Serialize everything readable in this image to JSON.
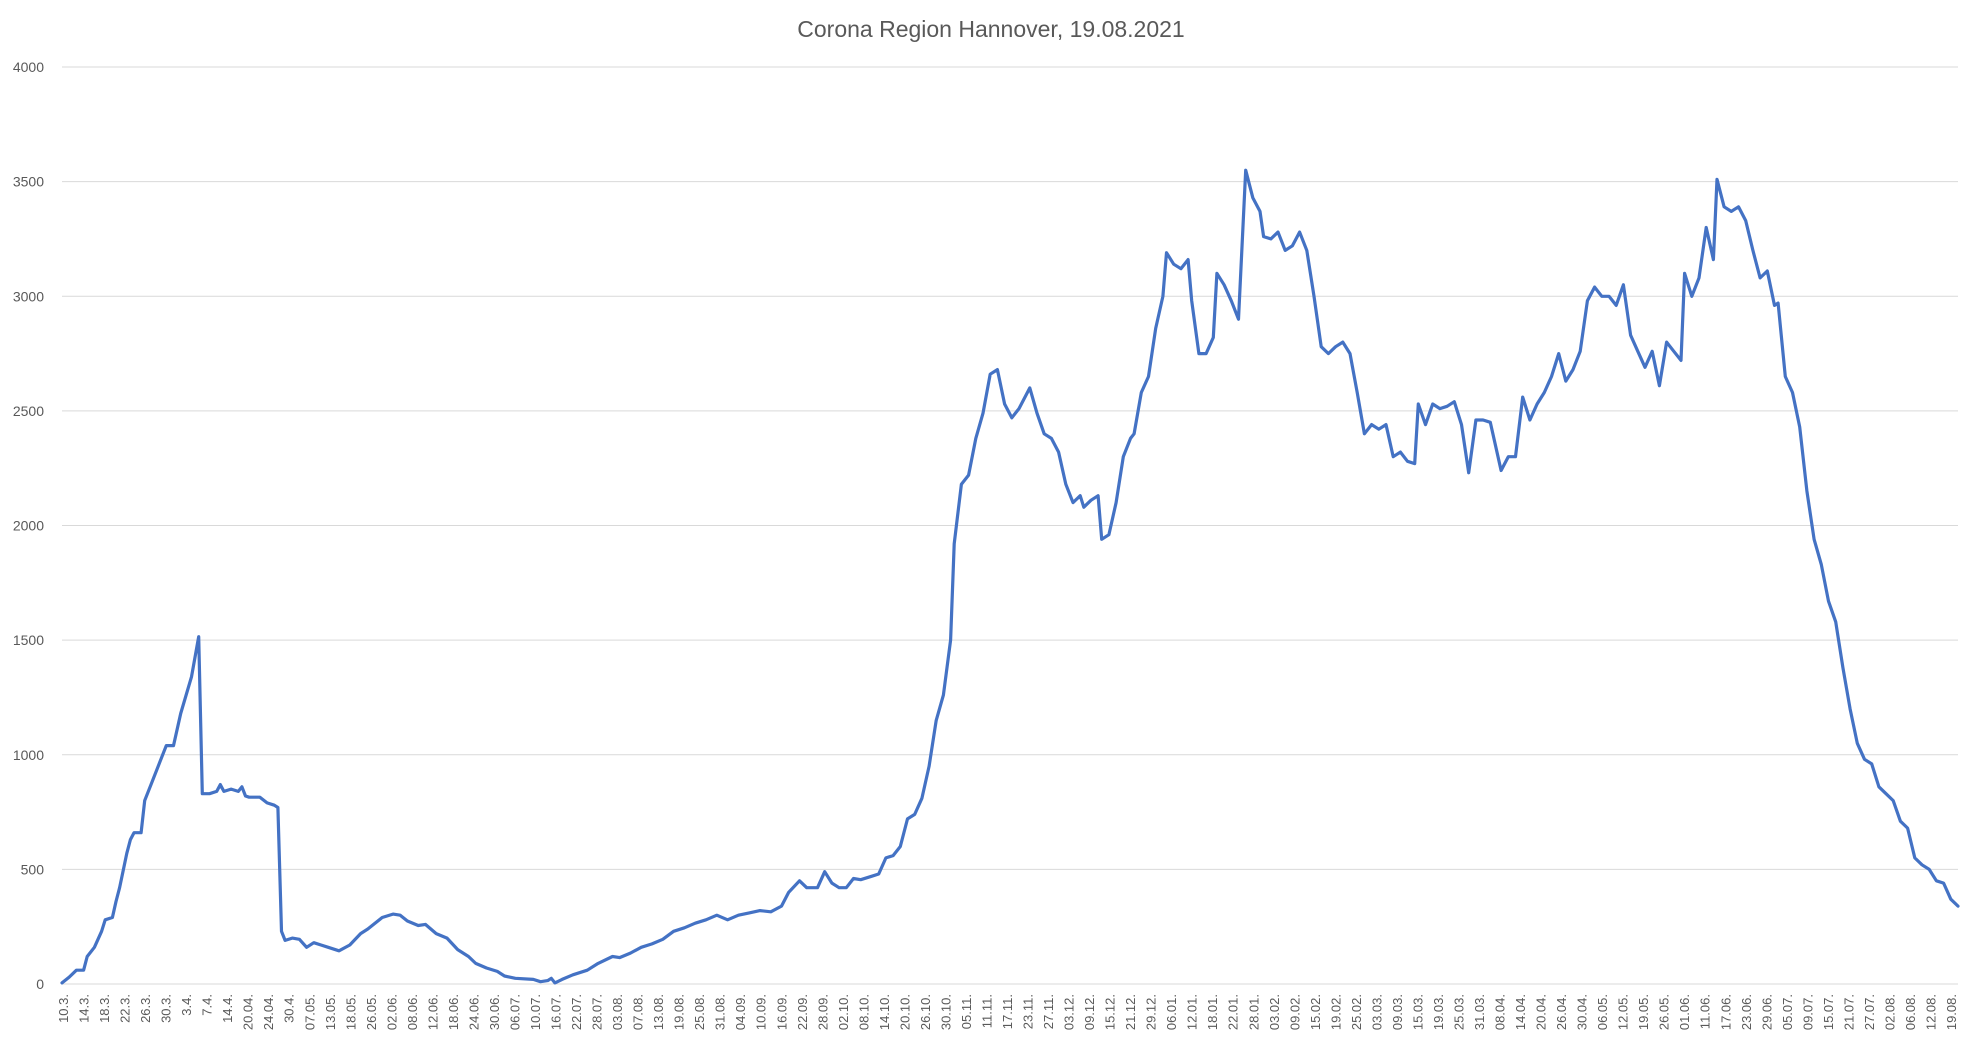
{
  "chart_data": {
    "type": "line",
    "title": "Corona Region Hannover, 19.08.2021",
    "xlabel": "",
    "ylabel": "",
    "ylim": [
      0,
      4000
    ],
    "yticks": [
      0,
      500,
      1000,
      1500,
      2000,
      2500,
      3000,
      3500,
      4000
    ],
    "grid": true,
    "legend": "none",
    "colors": {
      "series": "#4472c4",
      "grid": "#d9d9d9",
      "text": "#595959"
    },
    "x_start_date": "2020-03-10",
    "x_end_date": "2021-08-19",
    "xticks": [
      "10.3.",
      "14.3.",
      "18.3.",
      "22.3.",
      "26.3.",
      "30.3.",
      "3.4.",
      "7.4.",
      "14.4.",
      "20.04.",
      "24.04.",
      "30.4.",
      "07.05.",
      "13.05.",
      "18.05.",
      "26.05.",
      "02.06.",
      "08.06.",
      "12.06.",
      "18.06.",
      "24.06.",
      "30.06.",
      "06.07.",
      "10.07.",
      "16.07.",
      "22.07.",
      "28.07.",
      "03.08.",
      "07.08.",
      "13.08.",
      "19.08.",
      "25.08.",
      "31.08.",
      "04.09.",
      "10.09.",
      "16.09.",
      "22.09.",
      "28.09.",
      "02.10.",
      "08.10.",
      "14.10.",
      "20.10.",
      "26.10.",
      "30.10.",
      "05.11.",
      "11.11.",
      "17.11.",
      "23.11.",
      "27.11.",
      "03.12.",
      "09.12.",
      "15.12.",
      "21.12.",
      "29.12.",
      "06.01.",
      "12.01.",
      "18.01.",
      "22.01.",
      "28.01.",
      "03.02.",
      "09.02.",
      "15.02.",
      "19.02.",
      "25.02.",
      "03.03.",
      "09.03.",
      "15.03.",
      "19.03.",
      "25.03.",
      "31.03.",
      "08.04.",
      "14.04.",
      "20.04.",
      "26.04.",
      "30.04.",
      "06.05.",
      "12.05.",
      "19.05.",
      "26.05.",
      "01.06.",
      "11.06.",
      "17.06.",
      "23.06.",
      "29.06.",
      "05.07.",
      "09.07.",
      "15.07.",
      "21.07.",
      "27.07.",
      "02.08.",
      "06.08.",
      "12.08.",
      "19.08."
    ],
    "series": [
      {
        "name": "",
        "points": [
          [
            "2020-03-10",
            5
          ],
          [
            "2020-03-12",
            30
          ],
          [
            "2020-03-14",
            60
          ],
          [
            "2020-03-16",
            60
          ],
          [
            "2020-03-17",
            120
          ],
          [
            "2020-03-19",
            160
          ],
          [
            "2020-03-21",
            230
          ],
          [
            "2020-03-22",
            280
          ],
          [
            "2020-03-24",
            290
          ],
          [
            "2020-03-25",
            360
          ],
          [
            "2020-03-26",
            420
          ],
          [
            "2020-03-28",
            570
          ],
          [
            "2020-03-29",
            630
          ],
          [
            "2020-03-30",
            660
          ],
          [
            "2020-04-01",
            660
          ],
          [
            "2020-04-02",
            800
          ],
          [
            "2020-04-04",
            880
          ],
          [
            "2020-04-06",
            960
          ],
          [
            "2020-04-08",
            1040
          ],
          [
            "2020-04-10",
            1040
          ],
          [
            "2020-04-12",
            1180
          ],
          [
            "2020-04-15",
            1340
          ],
          [
            "2020-04-17",
            1515
          ],
          [
            "2020-04-18",
            830
          ],
          [
            "2020-04-20",
            830
          ],
          [
            "2020-04-22",
            840
          ],
          [
            "2020-04-23",
            870
          ],
          [
            "2020-04-24",
            840
          ],
          [
            "2020-04-26",
            850
          ],
          [
            "2020-04-28",
            840
          ],
          [
            "2020-04-29",
            860
          ],
          [
            "2020-04-30",
            820
          ],
          [
            "2020-05-01",
            815
          ],
          [
            "2020-05-04",
            815
          ],
          [
            "2020-05-06",
            790
          ],
          [
            "2020-05-08",
            780
          ],
          [
            "2020-05-09",
            770
          ],
          [
            "2020-05-10",
            230
          ],
          [
            "2020-05-11",
            190
          ],
          [
            "2020-05-13",
            200
          ],
          [
            "2020-05-15",
            195
          ],
          [
            "2020-05-17",
            160
          ],
          [
            "2020-05-19",
            180
          ],
          [
            "2020-05-21",
            170
          ],
          [
            "2020-05-23",
            160
          ],
          [
            "2020-05-26",
            145
          ],
          [
            "2020-05-29",
            170
          ],
          [
            "2020-06-01",
            220
          ],
          [
            "2020-06-03",
            240
          ],
          [
            "2020-06-05",
            265
          ],
          [
            "2020-06-07",
            290
          ],
          [
            "2020-06-10",
            305
          ],
          [
            "2020-06-12",
            300
          ],
          [
            "2020-06-14",
            275
          ],
          [
            "2020-06-17",
            255
          ],
          [
            "2020-06-19",
            260
          ],
          [
            "2020-06-22",
            220
          ],
          [
            "2020-06-25",
            200
          ],
          [
            "2020-06-28",
            150
          ],
          [
            "2020-07-01",
            120
          ],
          [
            "2020-07-03",
            90
          ],
          [
            "2020-07-06",
            70
          ],
          [
            "2020-07-09",
            55
          ],
          [
            "2020-07-11",
            35
          ],
          [
            "2020-07-14",
            25
          ],
          [
            "2020-07-19",
            20
          ],
          [
            "2020-07-21",
            10
          ],
          [
            "2020-07-23",
            15
          ],
          [
            "2020-07-24",
            25
          ],
          [
            "2020-07-25",
            5
          ],
          [
            "2020-07-27",
            20
          ],
          [
            "2020-07-30",
            40
          ],
          [
            "2020-08-03",
            60
          ],
          [
            "2020-08-06",
            90
          ],
          [
            "2020-08-10",
            120
          ],
          [
            "2020-08-12",
            115
          ],
          [
            "2020-08-15",
            135
          ],
          [
            "2020-08-18",
            160
          ],
          [
            "2020-08-21",
            175
          ],
          [
            "2020-08-24",
            195
          ],
          [
            "2020-08-27",
            230
          ],
          [
            "2020-08-30",
            245
          ],
          [
            "2020-09-02",
            265
          ],
          [
            "2020-09-05",
            280
          ],
          [
            "2020-09-08",
            300
          ],
          [
            "2020-09-11",
            280
          ],
          [
            "2020-09-14",
            300
          ],
          [
            "2020-09-17",
            310
          ],
          [
            "2020-09-20",
            320
          ],
          [
            "2020-09-23",
            315
          ],
          [
            "2020-09-26",
            340
          ],
          [
            "2020-09-28",
            400
          ],
          [
            "2020-10-01",
            450
          ],
          [
            "2020-10-03",
            420
          ],
          [
            "2020-10-06",
            420
          ],
          [
            "2020-10-08",
            490
          ],
          [
            "2020-10-10",
            440
          ],
          [
            "2020-10-12",
            420
          ],
          [
            "2020-10-14",
            420
          ],
          [
            "2020-10-16",
            460
          ],
          [
            "2020-10-18",
            455
          ],
          [
            "2020-10-21",
            470
          ],
          [
            "2020-10-23",
            480
          ],
          [
            "2020-10-25",
            550
          ],
          [
            "2020-10-27",
            560
          ],
          [
            "2020-10-29",
            600
          ],
          [
            "2020-10-31",
            720
          ],
          [
            "2020-11-02",
            740
          ],
          [
            "2020-11-04",
            810
          ],
          [
            "2020-11-06",
            950
          ],
          [
            "2020-11-08",
            1150
          ],
          [
            "2020-11-10",
            1260
          ],
          [
            "2020-11-12",
            1500
          ],
          [
            "2020-11-13",
            1920
          ],
          [
            "2020-11-15",
            2180
          ],
          [
            "2020-11-17",
            2220
          ],
          [
            "2020-11-19",
            2380
          ],
          [
            "2020-11-21",
            2490
          ],
          [
            "2020-11-23",
            2660
          ],
          [
            "2020-11-25",
            2680
          ],
          [
            "2020-11-27",
            2530
          ],
          [
            "2020-11-29",
            2470
          ],
          [
            "2020-12-01",
            2510
          ],
          [
            "2020-12-04",
            2600
          ],
          [
            "2020-12-06",
            2490
          ],
          [
            "2020-12-08",
            2400
          ],
          [
            "2020-12-10",
            2380
          ],
          [
            "2020-12-12",
            2320
          ],
          [
            "2020-12-14",
            2180
          ],
          [
            "2020-12-16",
            2100
          ],
          [
            "2020-12-18",
            2130
          ],
          [
            "2020-12-19",
            2080
          ],
          [
            "2020-12-21",
            2110
          ],
          [
            "2020-12-23",
            2130
          ],
          [
            "2020-12-24",
            1940
          ],
          [
            "2020-12-26",
            1960
          ],
          [
            "2020-12-28",
            2100
          ],
          [
            "2020-12-30",
            2300
          ],
          [
            "2021-01-01",
            2380
          ],
          [
            "2021-01-02",
            2400
          ],
          [
            "2021-01-04",
            2580
          ],
          [
            "2021-01-06",
            2650
          ],
          [
            "2021-01-08",
            2860
          ],
          [
            "2021-01-10",
            3000
          ],
          [
            "2021-01-11",
            3190
          ],
          [
            "2021-01-13",
            3140
          ],
          [
            "2021-01-15",
            3120
          ],
          [
            "2021-01-17",
            3160
          ],
          [
            "2021-01-18",
            2980
          ],
          [
            "2021-01-20",
            2750
          ],
          [
            "2021-01-22",
            2750
          ],
          [
            "2021-01-24",
            2820
          ],
          [
            "2021-01-25",
            3100
          ],
          [
            "2021-01-27",
            3050
          ],
          [
            "2021-01-29",
            2980
          ],
          [
            "2021-01-31",
            2900
          ],
          [
            "2021-02-02",
            3550
          ],
          [
            "2021-02-04",
            3430
          ],
          [
            "2021-02-06",
            3370
          ],
          [
            "2021-02-07",
            3260
          ],
          [
            "2021-02-09",
            3250
          ],
          [
            "2021-02-11",
            3280
          ],
          [
            "2021-02-13",
            3200
          ],
          [
            "2021-02-15",
            3220
          ],
          [
            "2021-02-17",
            3280
          ],
          [
            "2021-02-19",
            3200
          ],
          [
            "2021-02-21",
            3000
          ],
          [
            "2021-02-23",
            2780
          ],
          [
            "2021-02-25",
            2750
          ],
          [
            "2021-02-27",
            2780
          ],
          [
            "2021-03-01",
            2800
          ],
          [
            "2021-03-03",
            2750
          ],
          [
            "2021-03-05",
            2580
          ],
          [
            "2021-03-07",
            2400
          ],
          [
            "2021-03-09",
            2440
          ],
          [
            "2021-03-11",
            2420
          ],
          [
            "2021-03-13",
            2440
          ],
          [
            "2021-03-15",
            2300
          ],
          [
            "2021-03-17",
            2320
          ],
          [
            "2021-03-19",
            2280
          ],
          [
            "2021-03-21",
            2270
          ],
          [
            "2021-03-22",
            2530
          ],
          [
            "2021-03-24",
            2440
          ],
          [
            "2021-03-26",
            2530
          ],
          [
            "2021-03-28",
            2510
          ],
          [
            "2021-03-30",
            2520
          ],
          [
            "2021-04-01",
            2540
          ],
          [
            "2021-04-03",
            2440
          ],
          [
            "2021-04-05",
            2230
          ],
          [
            "2021-04-07",
            2460
          ],
          [
            "2021-04-09",
            2460
          ],
          [
            "2021-04-11",
            2450
          ],
          [
            "2021-04-14",
            2240
          ],
          [
            "2021-04-16",
            2300
          ],
          [
            "2021-04-18",
            2300
          ],
          [
            "2021-04-20",
            2560
          ],
          [
            "2021-04-22",
            2460
          ],
          [
            "2021-04-24",
            2530
          ],
          [
            "2021-04-26",
            2580
          ],
          [
            "2021-04-28",
            2650
          ],
          [
            "2021-04-30",
            2750
          ],
          [
            "2021-05-02",
            2630
          ],
          [
            "2021-05-04",
            2680
          ],
          [
            "2021-05-06",
            2760
          ],
          [
            "2021-05-08",
            2980
          ],
          [
            "2021-05-10",
            3040
          ],
          [
            "2021-05-12",
            3000
          ],
          [
            "2021-05-14",
            3000
          ],
          [
            "2021-05-16",
            2960
          ],
          [
            "2021-05-18",
            3050
          ],
          [
            "2021-05-20",
            2830
          ],
          [
            "2021-05-22",
            2760
          ],
          [
            "2021-05-24",
            2690
          ],
          [
            "2021-05-26",
            2760
          ],
          [
            "2021-05-28",
            2610
          ],
          [
            "2021-05-30",
            2800
          ],
          [
            "2021-06-01",
            2760
          ],
          [
            "2021-06-03",
            2720
          ],
          [
            "2021-06-04",
            3100
          ],
          [
            "2021-06-06",
            3000
          ],
          [
            "2021-06-08",
            3080
          ],
          [
            "2021-06-10",
            3300
          ],
          [
            "2021-06-12",
            3160
          ],
          [
            "2021-06-13",
            3510
          ],
          [
            "2021-06-15",
            3390
          ],
          [
            "2021-06-17",
            3370
          ],
          [
            "2021-06-19",
            3390
          ],
          [
            "2021-06-21",
            3330
          ],
          [
            "2021-06-23",
            3200
          ],
          [
            "2021-06-25",
            3080
          ],
          [
            "2021-06-27",
            3110
          ],
          [
            "2021-06-29",
            2960
          ],
          [
            "2021-06-30",
            2970
          ],
          [
            "2021-07-02",
            2650
          ],
          [
            "2021-07-04",
            2580
          ],
          [
            "2021-07-06",
            2430
          ],
          [
            "2021-07-08",
            2150
          ],
          [
            "2021-07-10",
            1940
          ],
          [
            "2021-07-12",
            1830
          ],
          [
            "2021-07-14",
            1670
          ],
          [
            "2021-07-16",
            1580
          ],
          [
            "2021-07-18",
            1380
          ],
          [
            "2021-07-20",
            1200
          ],
          [
            "2021-07-22",
            1050
          ],
          [
            "2021-07-24",
            980
          ],
          [
            "2021-07-26",
            960
          ],
          [
            "2021-07-28",
            860
          ],
          [
            "2021-07-30",
            830
          ],
          [
            "2021-08-01",
            800
          ],
          [
            "2021-08-03",
            710
          ],
          [
            "2021-08-05",
            680
          ],
          [
            "2021-08-07",
            550
          ],
          [
            "2021-08-09",
            520
          ],
          [
            "2021-08-11",
            500
          ],
          [
            "2021-08-13",
            450
          ],
          [
            "2021-08-15",
            440
          ],
          [
            "2021-08-17",
            370
          ],
          [
            "2021-08-19",
            340
          ]
        ]
      }
    ]
  }
}
